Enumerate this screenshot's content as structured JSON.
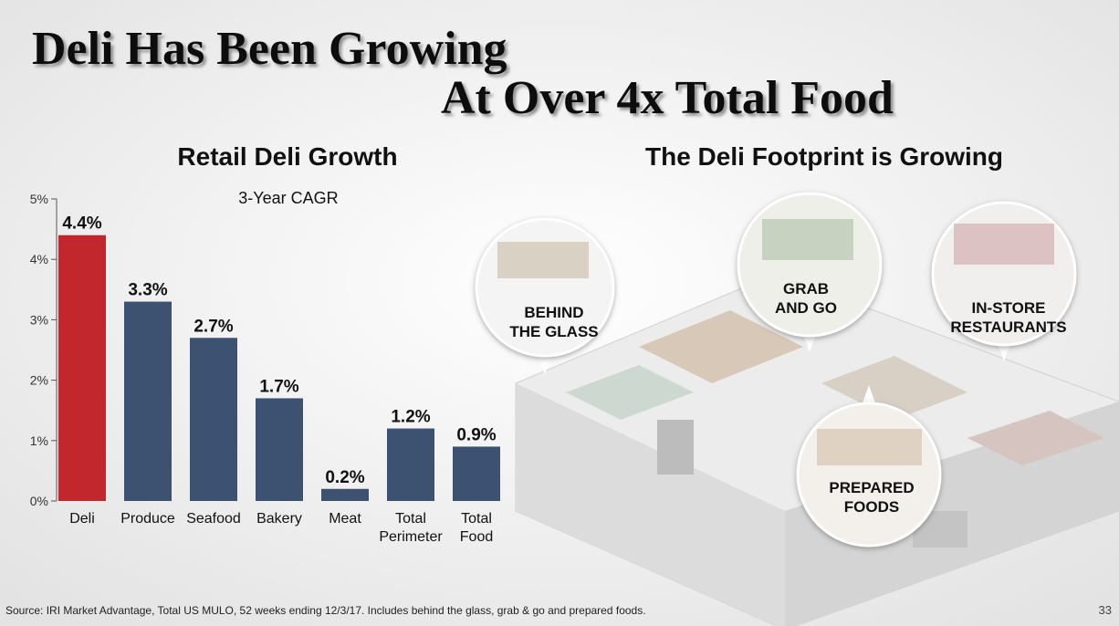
{
  "slide": {
    "title_line1": "Deli Has Been Growing",
    "title_line2": "At Over 4x Total Food",
    "right_heading": "The Deli Footprint is Growing",
    "callouts": [
      {
        "lines": [
          "BEHIND",
          "THE GLASS"
        ]
      },
      {
        "lines": [
          "GRAB",
          "AND GO"
        ]
      },
      {
        "lines": [
          "IN-STORE",
          "RESTAURANTS"
        ]
      },
      {
        "lines": [
          "PREPARED",
          "FOODS"
        ]
      }
    ],
    "source": "Source:  IRI Market Advantage, Total US MULO, 52 weeks ending 12/3/17. Includes behind the glass, grab & go and prepared foods.",
    "page_number": "33"
  },
  "chart_data": {
    "type": "bar",
    "title": "Retail Deli Growth",
    "subtitle": "3-Year CAGR",
    "categories": [
      "Deli",
      "Produce",
      "Seafood",
      "Bakery",
      "Meat",
      "Total Perimeter",
      "Total Food"
    ],
    "values": [
      4.4,
      3.3,
      2.7,
      1.7,
      0.2,
      1.2,
      0.9
    ],
    "value_labels": [
      "4.4%",
      "3.3%",
      "2.7%",
      "1.7%",
      "0.2%",
      "1.2%",
      "0.9%"
    ],
    "colors": [
      "#c1272d",
      "#3d5271",
      "#3d5271",
      "#3d5271",
      "#3d5271",
      "#3d5271",
      "#3d5271"
    ],
    "ylim": [
      0,
      5
    ],
    "yticks": [
      {
        "value": 0,
        "label": "0%"
      },
      {
        "value": 1,
        "label": "1%"
      },
      {
        "value": 2,
        "label": "2%"
      },
      {
        "value": 3,
        "label": "3%"
      },
      {
        "value": 4,
        "label": "4%"
      },
      {
        "value": 5,
        "label": "5%"
      }
    ]
  }
}
